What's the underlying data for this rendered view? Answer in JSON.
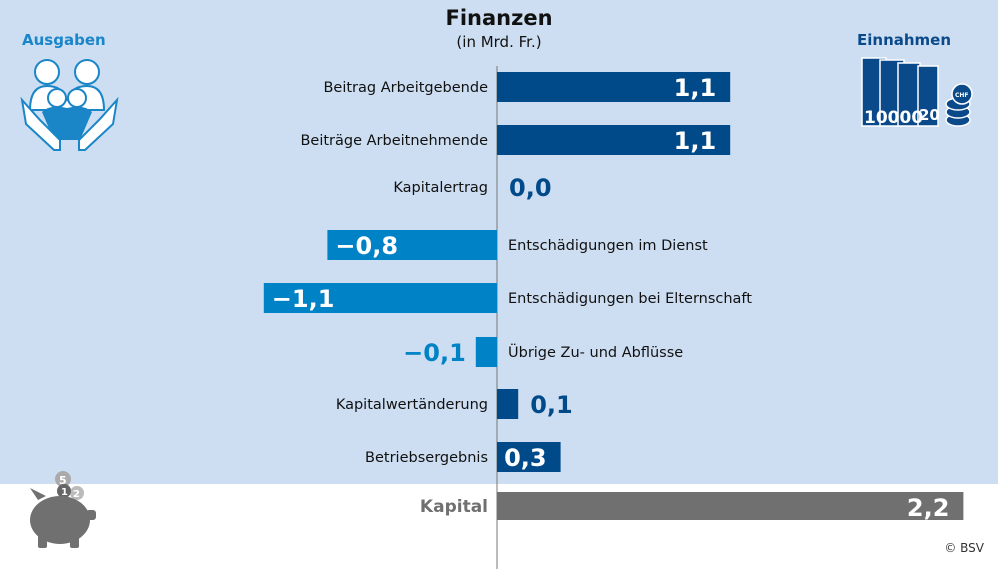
{
  "header": {
    "title": "Finanzen",
    "subtitle": "(in Mrd. Fr.)",
    "left_label": "Ausgaben",
    "right_label": "Einnahmen"
  },
  "icons": {
    "left": "family-in-hands-icon",
    "right": "banknotes-and-coins-icon",
    "bottom": "piggy-bank-icon",
    "banknote_text": "10000",
    "banknote_text2": "20",
    "coin_text": "CHF",
    "piggy_coins": [
      "5",
      "1",
      "2"
    ]
  },
  "colors": {
    "background_top": "#cddef2",
    "income": "#004a8a",
    "expense": "#0083c6",
    "capital": "#707070",
    "label": "#111111"
  },
  "credit": "© BSV",
  "chart_data": {
    "type": "bar",
    "orientation": "horizontal",
    "categories": [
      "Beitrag Arbeitgebende",
      "Beiträge Arbeitnehmende",
      "Kapitalertrag",
      "Entschädigungen im Dienst",
      "Entschädigungen bei Elternschaft",
      "Übrige Zu- und Abflüsse",
      "Kapitalwertänderung",
      "Betriebsergebnis",
      "Kapital"
    ],
    "values": [
      1.1,
      1.1,
      0.0,
      -0.8,
      -1.1,
      -0.1,
      0.1,
      0.3,
      2.2
    ],
    "bar_kinds": [
      "income",
      "income",
      "income",
      "expense",
      "expense",
      "expense",
      "income",
      "income",
      "capital"
    ],
    "unit": "Mrd. Fr.",
    "xlim": [
      -1.1,
      2.2
    ],
    "grid": false,
    "legend": "none"
  }
}
